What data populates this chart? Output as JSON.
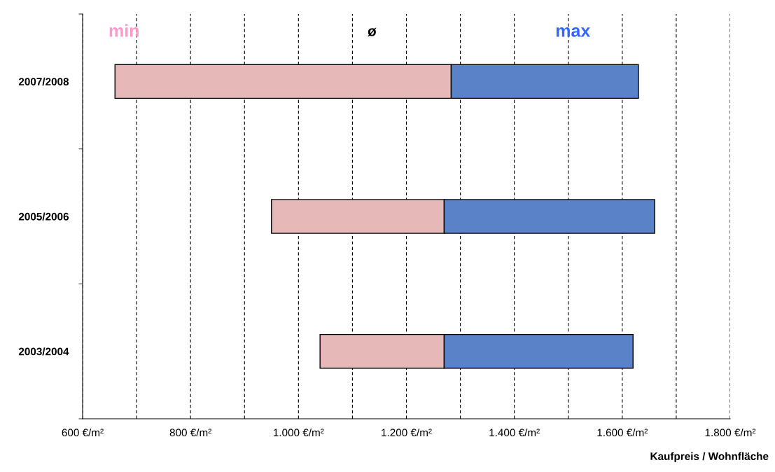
{
  "chart_data": {
    "type": "bar",
    "orientation": "horizontal",
    "categories": [
      "2007/2008",
      "2005/2006",
      "2003/2004"
    ],
    "series": [
      {
        "color": "#e6b9b8",
        "base": [
          660,
          950,
          1040
        ],
        "values": [
          623,
          320,
          230
        ]
      },
      {
        "color": "#5a82c8",
        "base": [
          1283,
          1270,
          1270
        ],
        "values": [
          347,
          390,
          350
        ]
      }
    ],
    "xlabel": "Kaufpreis / Wohnfläche",
    "xlim": [
      600,
      1800
    ],
    "xticks": [
      {
        "value": 600,
        "label": "600 €/m²"
      },
      {
        "value": 700,
        "label": null
      },
      {
        "value": 800,
        "label": "800 €/m²"
      },
      {
        "value": 900,
        "label": null
      },
      {
        "value": 1000,
        "label": "1.000 €/m²"
      },
      {
        "value": 1100,
        "label": null
      },
      {
        "value": 1200,
        "label": "1.200 €/m²"
      },
      {
        "value": 1300,
        "label": null
      },
      {
        "value": 1400,
        "label": "1.400 €/m²"
      },
      {
        "value": 1500,
        "label": null
      },
      {
        "value": 1600,
        "label": "1.600 €/m²"
      },
      {
        "value": 1700,
        "label": null
      },
      {
        "value": 1800,
        "label": "1.800 €/m²"
      }
    ],
    "grid": "x",
    "annotations": [
      "min",
      "ø",
      "max"
    ]
  }
}
